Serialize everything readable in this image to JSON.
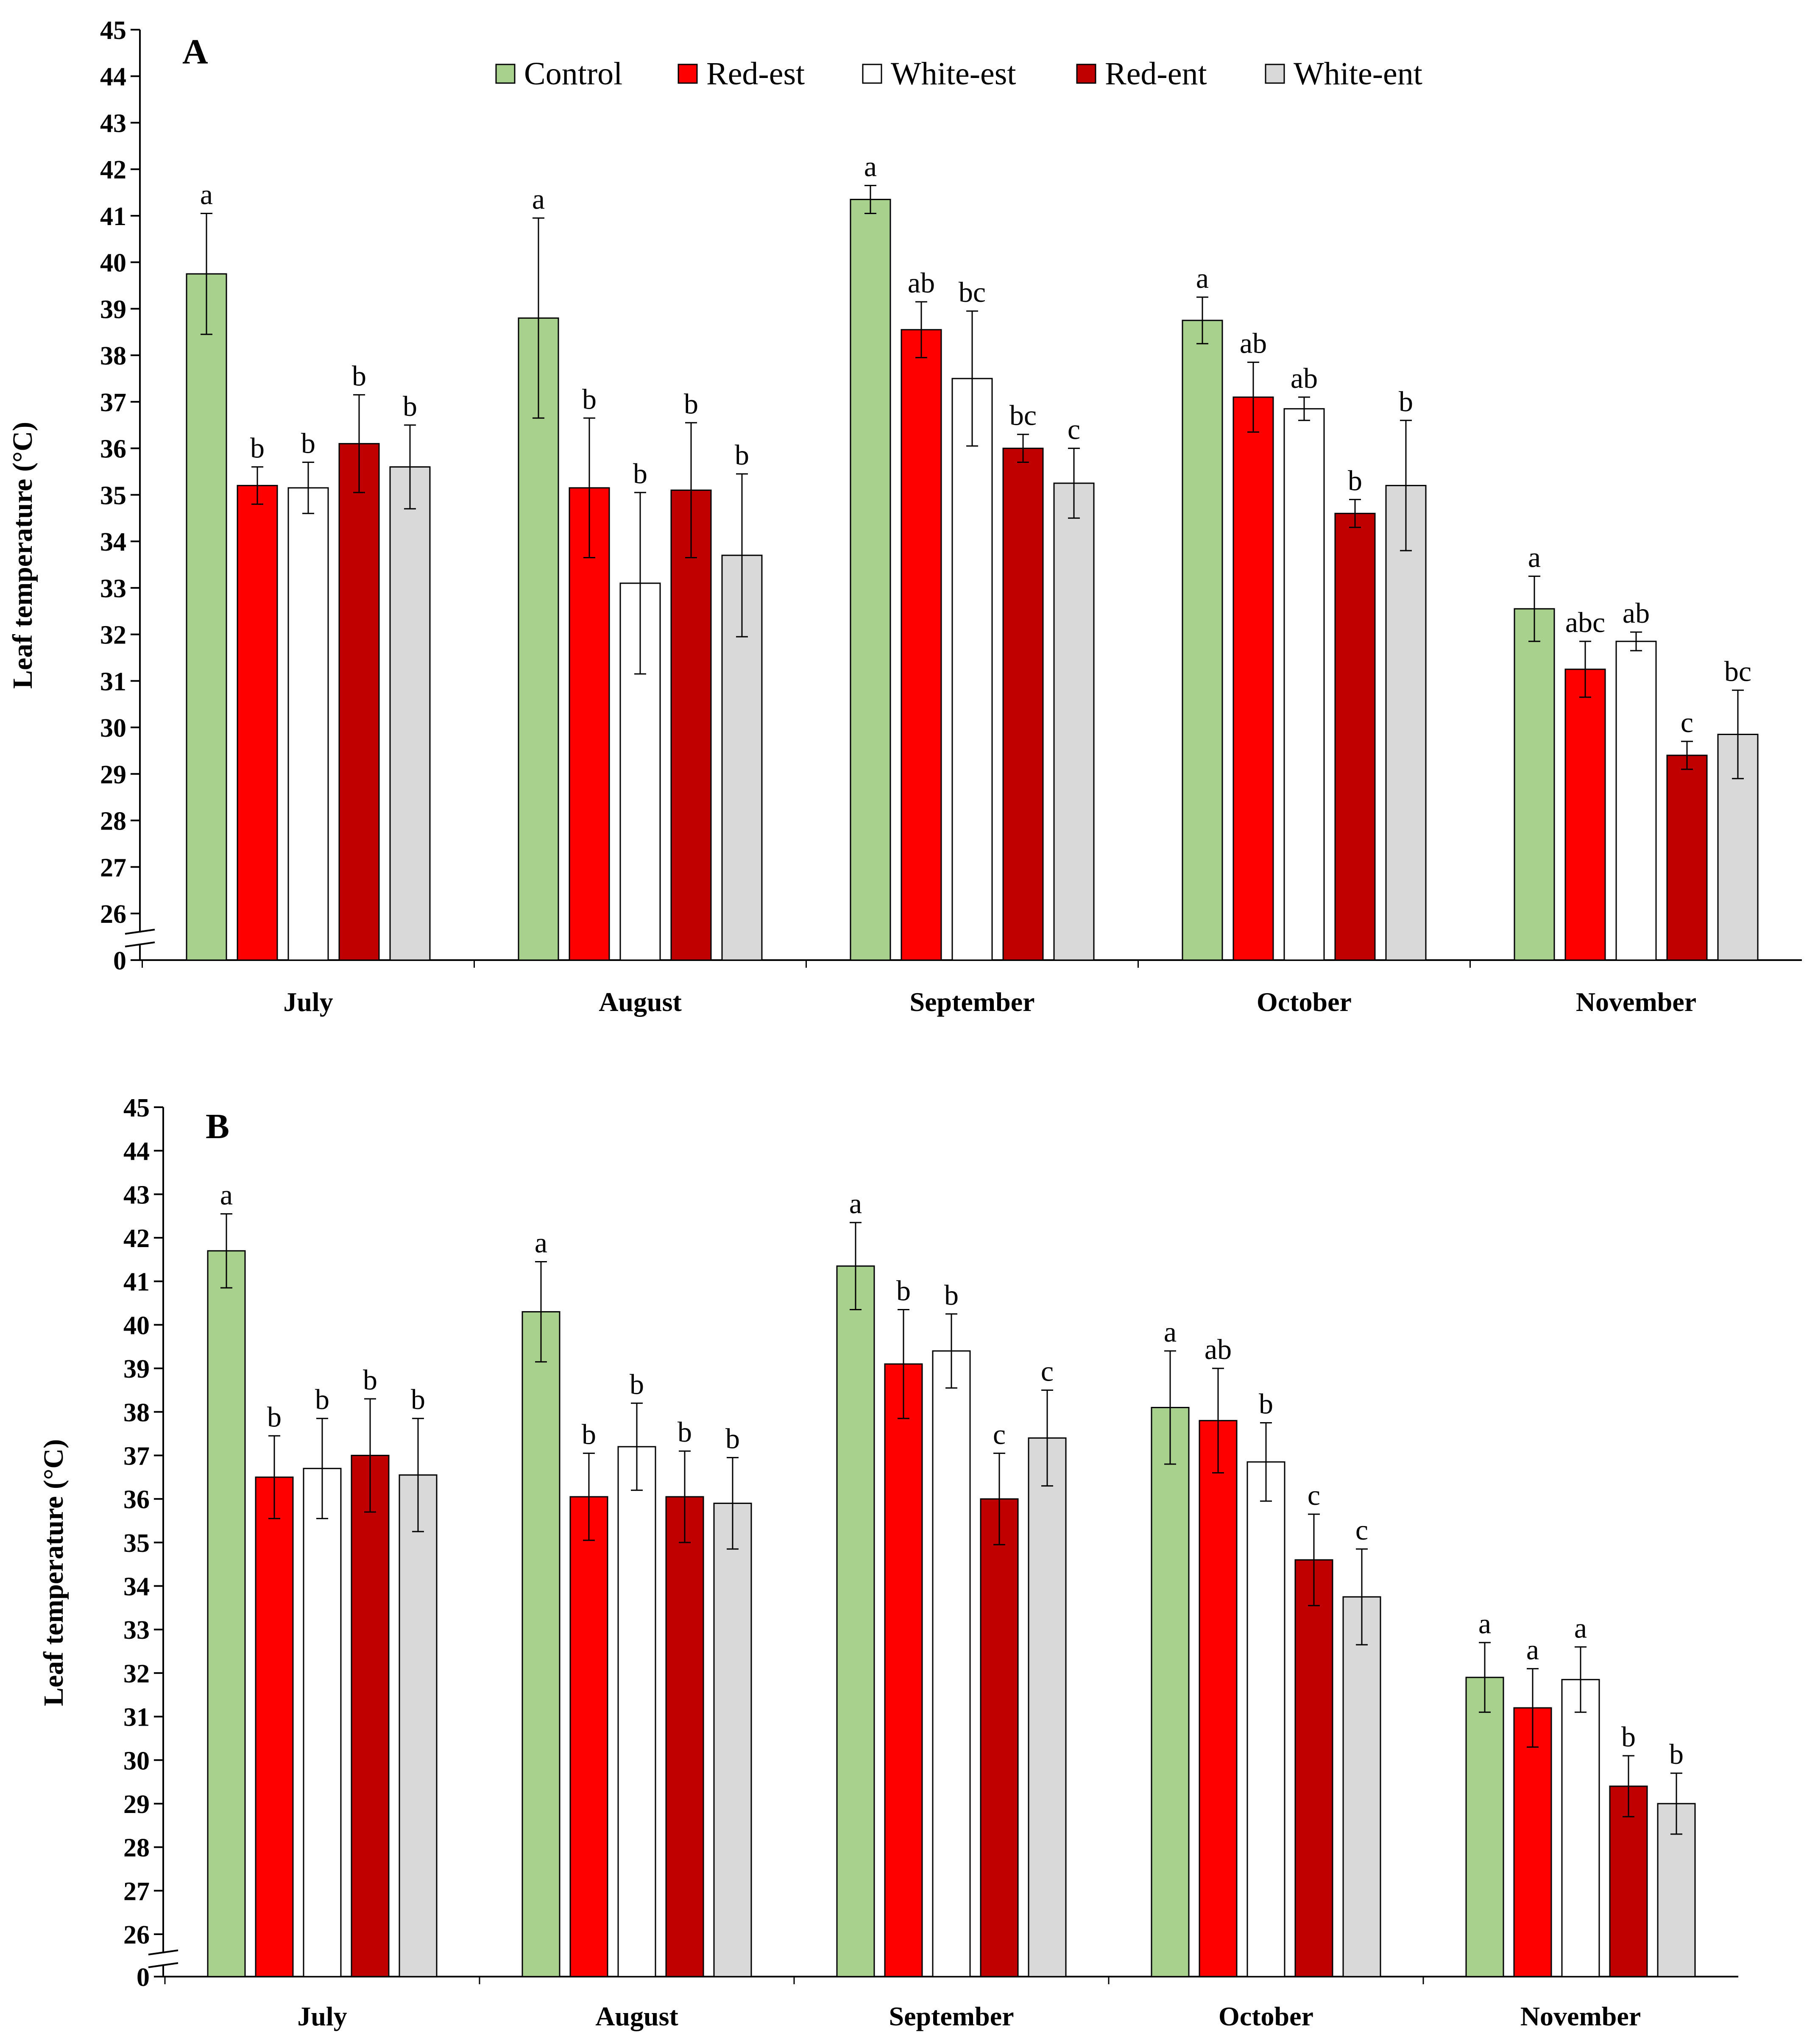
{
  "legend": [
    {
      "name": "Control",
      "color": "#a9d18e"
    },
    {
      "name": "Red-est",
      "color": "#ff0000"
    },
    {
      "name": "White-est",
      "color": "#ffffff"
    },
    {
      "name": "Red-ent",
      "color": "#c00000"
    },
    {
      "name": "White-ent",
      "color": "#d9d9d9"
    }
  ],
  "chart_data": [
    {
      "type": "bar",
      "panel": "A",
      "ylabel": "Leaf temperature (°C)",
      "xlabel": "",
      "ylim": [
        26,
        45
      ],
      "yticks": [
        "45",
        "44",
        "43",
        "42",
        "41",
        "40",
        "39",
        "38",
        "37",
        "36",
        "35",
        "34",
        "33",
        "32",
        "31",
        "30",
        "29",
        "28",
        "27",
        "26",
        "0"
      ],
      "axis_break": true,
      "categories": [
        "July",
        "August",
        "September",
        "October",
        "November"
      ],
      "series": [
        {
          "name": "Control",
          "color": "#a9d18e",
          "values": [
            39.75,
            38.8,
            41.35,
            38.75,
            32.55
          ],
          "errors": [
            1.3,
            2.15,
            0.3,
            0.5,
            0.7
          ],
          "labels": [
            "a",
            "a",
            "a",
            "a",
            "a"
          ]
        },
        {
          "name": "Red-est",
          "color": "#ff0000",
          "values": [
            35.2,
            35.15,
            38.55,
            37.1,
            31.25
          ],
          "errors": [
            0.4,
            1.5,
            0.6,
            0.75,
            0.6
          ],
          "labels": [
            "b",
            "b",
            "ab",
            "ab",
            "abc"
          ]
        },
        {
          "name": "White-est",
          "color": "#ffffff",
          "values": [
            35.15,
            33.1,
            37.5,
            36.85,
            31.85
          ],
          "errors": [
            0.55,
            1.95,
            1.45,
            0.25,
            0.2
          ],
          "labels": [
            "b",
            "b",
            "bc",
            "ab",
            "ab"
          ]
        },
        {
          "name": "Red-ent",
          "color": "#c00000",
          "values": [
            36.1,
            35.1,
            36.0,
            34.6,
            29.4
          ],
          "errors": [
            1.05,
            1.45,
            0.3,
            0.3,
            0.3
          ],
          "labels": [
            "b",
            "b",
            "bc",
            "b",
            "c"
          ]
        },
        {
          "name": "White-ent",
          "color": "#d9d9d9",
          "values": [
            35.6,
            33.7,
            35.25,
            35.2,
            29.85
          ],
          "errors": [
            0.9,
            1.75,
            0.75,
            1.4,
            0.95
          ],
          "labels": [
            "b",
            "b",
            "c",
            "b",
            "bc"
          ]
        }
      ]
    },
    {
      "type": "bar",
      "panel": "B",
      "ylabel": "Leaf temperature (°C)",
      "xlabel": "",
      "ylim": [
        26,
        45
      ],
      "yticks": [
        "45",
        "44",
        "43",
        "42",
        "41",
        "40",
        "39",
        "38",
        "37",
        "36",
        "35",
        "34",
        "33",
        "32",
        "31",
        "30",
        "29",
        "28",
        "27",
        "26",
        "0"
      ],
      "axis_break": true,
      "categories": [
        "July",
        "August",
        "September",
        "October",
        "November"
      ],
      "series": [
        {
          "name": "Control",
          "color": "#a9d18e",
          "values": [
            41.7,
            40.3,
            41.35,
            38.1,
            31.9
          ],
          "errors": [
            0.85,
            1.15,
            1.0,
            1.3,
            0.8
          ],
          "labels": [
            "a",
            "a",
            "a",
            "a",
            "a"
          ]
        },
        {
          "name": "Red-est",
          "color": "#ff0000",
          "values": [
            36.5,
            36.05,
            39.1,
            37.8,
            31.2
          ],
          "errors": [
            0.95,
            1.0,
            1.25,
            1.2,
            0.9
          ],
          "labels": [
            "b",
            "b",
            "b",
            "ab",
            "a"
          ]
        },
        {
          "name": "White-est",
          "color": "#ffffff",
          "values": [
            36.7,
            37.2,
            39.4,
            36.85,
            31.85
          ],
          "errors": [
            1.15,
            1.0,
            0.85,
            0.9,
            0.75
          ],
          "labels": [
            "b",
            "b",
            "b",
            "b",
            "a"
          ]
        },
        {
          "name": "Red-ent",
          "color": "#c00000",
          "values": [
            37.0,
            36.05,
            36.0,
            34.6,
            29.4
          ],
          "errors": [
            1.3,
            1.05,
            1.05,
            1.05,
            0.7
          ],
          "labels": [
            "b",
            "b",
            "c",
            "c",
            "b"
          ]
        },
        {
          "name": "White-ent",
          "color": "#d9d9d9",
          "values": [
            36.55,
            35.9,
            37.4,
            33.75,
            29.0
          ],
          "errors": [
            1.3,
            1.05,
            1.1,
            1.1,
            0.7
          ],
          "labels": [
            "b",
            "b",
            "c",
            "c",
            "b"
          ]
        }
      ]
    }
  ]
}
